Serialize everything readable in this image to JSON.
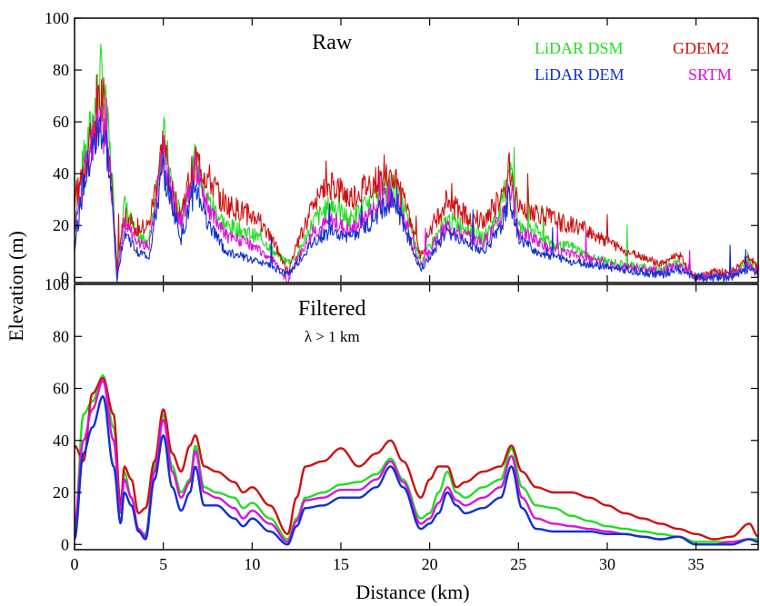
{
  "colors": {
    "lidar_dsm": "#22dd22",
    "gdem2": "#d01010",
    "lidar_dem": "#1030d0",
    "srtm": "#dd10dd"
  },
  "shared": {
    "ylabel": "Elevation (m)",
    "xlabel": "Distance (km)"
  },
  "chart_data": [
    {
      "type": "line",
      "title": "Raw",
      "subtitle": "",
      "xlim": [
        0,
        38.5
      ],
      "ylim": [
        -2,
        100
      ],
      "yticks": [
        0,
        20,
        40,
        60,
        80,
        100
      ],
      "xticks": [
        0,
        5,
        10,
        15,
        20,
        25,
        30,
        35
      ],
      "legend": "top-right",
      "series": [
        {
          "name": "LiDAR DSM",
          "key": "lidar_dsm",
          "x": [
            0,
            0.5,
            1,
            1.5,
            1.8,
            2.1,
            2.4,
            2.8,
            3.5,
            4.2,
            5,
            5.5,
            6,
            6.8,
            7.5,
            8.5,
            9.5,
            10.5,
            11.5,
            12,
            12.5,
            13.5,
            14.5,
            15.5,
            16.5,
            17.5,
            18,
            19,
            19.5,
            20,
            21,
            22,
            23,
            24,
            24.5,
            25,
            26,
            27,
            28,
            29,
            30,
            31,
            32,
            33,
            34,
            35,
            36,
            37,
            38,
            38.5
          ],
          "y": [
            22,
            45,
            60,
            78,
            62,
            40,
            5,
            28,
            16,
            14,
            55,
            35,
            22,
            45,
            30,
            20,
            18,
            15,
            8,
            6,
            8,
            22,
            28,
            22,
            28,
            34,
            35,
            18,
            6,
            12,
            22,
            20,
            15,
            25,
            45,
            20,
            18,
            12,
            12,
            8,
            6,
            5,
            4,
            3,
            6,
            0,
            1,
            1,
            6,
            2
          ]
        },
        {
          "name": "GDEM2",
          "key": "gdem2",
          "x": [
            0,
            0.5,
            1,
            1.5,
            1.8,
            2.1,
            2.4,
            2.8,
            3.5,
            4.2,
            5,
            5.5,
            6,
            6.8,
            7.5,
            8.5,
            9.5,
            10.5,
            11.5,
            12,
            12.5,
            13.5,
            14.5,
            15.5,
            16.5,
            17.5,
            18,
            19,
            19.5,
            20,
            21,
            22,
            23,
            24,
            24.5,
            25,
            26,
            27,
            28,
            29,
            30,
            31,
            32,
            33,
            34,
            35,
            36,
            37,
            38,
            38.5
          ],
          "y": [
            30,
            40,
            55,
            68,
            55,
            35,
            2,
            25,
            18,
            20,
            52,
            32,
            25,
            45,
            38,
            28,
            25,
            22,
            10,
            2,
            12,
            30,
            36,
            30,
            35,
            38,
            40,
            20,
            8,
            18,
            30,
            24,
            22,
            30,
            42,
            28,
            25,
            22,
            20,
            18,
            14,
            10,
            8,
            5,
            9,
            0,
            2,
            2,
            8,
            3
          ]
        },
        {
          "name": "LiDAR DEM",
          "key": "lidar_dem",
          "x": [
            0,
            0.5,
            1,
            1.5,
            1.8,
            2.1,
            2.4,
            2.8,
            3.5,
            4.2,
            5,
            5.5,
            6,
            6.8,
            7.5,
            8.5,
            9.5,
            10.5,
            11.5,
            12,
            12.5,
            13.5,
            14.5,
            15.5,
            16.5,
            17.5,
            18,
            19,
            19.5,
            20,
            21,
            22,
            23,
            24,
            24.5,
            25,
            26,
            27,
            28,
            29,
            30,
            31,
            32,
            33,
            34,
            35,
            36,
            37,
            38,
            38.5
          ],
          "y": [
            12,
            35,
            48,
            58,
            50,
            30,
            -1,
            18,
            10,
            8,
            42,
            28,
            15,
            35,
            22,
            10,
            8,
            6,
            3,
            1,
            5,
            14,
            18,
            15,
            20,
            28,
            30,
            12,
            3,
            8,
            18,
            14,
            10,
            18,
            32,
            15,
            10,
            8,
            6,
            5,
            4,
            3,
            2,
            1,
            3,
            0,
            0,
            0,
            3,
            1
          ]
        },
        {
          "name": "SRTM",
          "key": "srtm",
          "x": [
            0,
            0.5,
            1,
            1.5,
            1.8,
            2.1,
            2.4,
            2.8,
            3.5,
            4.2,
            5,
            5.5,
            6,
            6.8,
            7.5,
            8.5,
            9.5,
            10.5,
            11.5,
            12,
            12.5,
            13.5,
            14.5,
            15.5,
            16.5,
            17.5,
            18,
            19,
            19.5,
            20,
            21,
            22,
            23,
            24,
            24.5,
            25,
            26,
            27,
            28,
            29,
            30,
            31,
            32,
            33,
            34,
            35,
            36,
            37,
            38,
            38.5
          ],
          "y": [
            18,
            38,
            52,
            62,
            52,
            32,
            0,
            22,
            14,
            12,
            48,
            30,
            20,
            42,
            28,
            16,
            14,
            10,
            5,
            -2,
            7,
            18,
            22,
            18,
            24,
            30,
            33,
            14,
            4,
            10,
            20,
            16,
            13,
            22,
            36,
            18,
            14,
            10,
            9,
            7,
            5,
            4,
            3,
            2,
            5,
            0,
            1,
            1,
            5,
            2
          ]
        }
      ]
    },
    {
      "type": "line",
      "title": "Filtered",
      "subtitle": "λ > 1 km",
      "xlim": [
        0,
        38.5
      ],
      "ylim": [
        -2,
        100
      ],
      "yticks": [
        0,
        20,
        40,
        60,
        80,
        100
      ],
      "xticks": [
        0,
        5,
        10,
        15,
        20,
        25,
        30,
        35
      ],
      "xticklabels": [
        "0",
        "5",
        "10",
        "15",
        "20",
        "25",
        "30",
        "35"
      ],
      "series": [
        {
          "name": "LiDAR DSM",
          "key": "lidar_dsm",
          "x": [
            0,
            0.5,
            1,
            1.6,
            2.2,
            2.6,
            2.8,
            3.2,
            3.6,
            4,
            4.5,
            5,
            5.5,
            6,
            6.5,
            6.8,
            7.3,
            8,
            9,
            9.5,
            10,
            11,
            12,
            12.5,
            13,
            14,
            15,
            16,
            17,
            17.8,
            18.5,
            19.5,
            20,
            20.5,
            21,
            21.5,
            22,
            23,
            24,
            24.6,
            25.2,
            26,
            27,
            28,
            29,
            30,
            31,
            32,
            33,
            34,
            35,
            36,
            37,
            38,
            38.5
          ],
          "y": [
            5,
            50,
            55,
            65,
            45,
            15,
            28,
            18,
            5,
            4,
            30,
            50,
            30,
            20,
            25,
            38,
            22,
            20,
            18,
            14,
            16,
            10,
            2,
            10,
            18,
            20,
            23,
            24,
            27,
            33,
            25,
            10,
            12,
            20,
            28,
            20,
            18,
            22,
            25,
            37,
            22,
            15,
            14,
            11,
            9,
            7,
            6,
            5,
            4,
            3,
            1,
            1,
            1,
            2,
            2
          ]
        },
        {
          "name": "GDEM2",
          "key": "gdem2",
          "x": [
            0,
            0.5,
            1,
            1.6,
            2.2,
            2.6,
            2.8,
            3.2,
            3.6,
            4,
            4.5,
            5,
            5.5,
            6,
            6.5,
            6.8,
            7.3,
            8,
            9,
            9.5,
            10,
            11,
            12,
            12.5,
            13,
            14,
            15,
            16,
            17,
            17.8,
            18.5,
            19.5,
            20,
            20.5,
            21,
            21.5,
            22,
            23,
            24,
            24.6,
            25.2,
            26,
            27,
            28,
            29,
            30,
            31,
            32,
            33,
            34,
            35,
            36,
            37,
            38,
            38.5
          ],
          "y": [
            38,
            32,
            58,
            64,
            50,
            15,
            30,
            25,
            12,
            14,
            32,
            52,
            35,
            28,
            38,
            42,
            30,
            28,
            24,
            20,
            22,
            15,
            4,
            18,
            30,
            32,
            37,
            30,
            35,
            40,
            32,
            18,
            25,
            30,
            30,
            22,
            24,
            28,
            30,
            38,
            28,
            22,
            20,
            20,
            18,
            15,
            12,
            10,
            8,
            6,
            4,
            2,
            3,
            8,
            3
          ]
        },
        {
          "name": "LiDAR DEM",
          "key": "lidar_dem",
          "x": [
            0,
            0.5,
            1,
            1.6,
            2.2,
            2.6,
            2.8,
            3.2,
            3.6,
            4,
            4.5,
            5,
            5.5,
            6,
            6.5,
            6.8,
            7.3,
            8,
            9,
            9.5,
            10,
            11,
            12,
            12.5,
            13,
            14,
            15,
            16,
            17,
            17.8,
            18.5,
            19.5,
            20,
            20.5,
            21,
            21.5,
            22,
            23,
            24,
            24.6,
            25.2,
            26,
            27,
            28,
            29,
            30,
            31,
            32,
            33,
            34,
            35,
            36,
            37,
            38,
            38.5
          ],
          "y": [
            2,
            35,
            45,
            57,
            30,
            8,
            20,
            15,
            5,
            2,
            25,
            42,
            22,
            13,
            20,
            30,
            15,
            15,
            10,
            7,
            10,
            5,
            0,
            7,
            14,
            15,
            18,
            18,
            22,
            30,
            22,
            6,
            8,
            12,
            20,
            15,
            12,
            14,
            18,
            30,
            14,
            6,
            5,
            5,
            5,
            4,
            4,
            3,
            2,
            3,
            0,
            0,
            0,
            2,
            1
          ]
        },
        {
          "name": "SRTM",
          "key": "srtm",
          "x": [
            0,
            0.5,
            1,
            1.6,
            2.2,
            2.6,
            2.8,
            3.2,
            3.6,
            4,
            4.5,
            5,
            5.5,
            6,
            6.5,
            6.8,
            7.3,
            8,
            9,
            9.5,
            10,
            11,
            12,
            12.5,
            13,
            14,
            15,
            16,
            17,
            17.8,
            18.5,
            19.5,
            20,
            20.5,
            21,
            21.5,
            22,
            23,
            24,
            24.6,
            25.2,
            26,
            27,
            28,
            29,
            30,
            31,
            32,
            33,
            34,
            35,
            36,
            37,
            38,
            38.5
          ],
          "y": [
            8,
            40,
            52,
            63,
            40,
            12,
            25,
            18,
            6,
            3,
            28,
            48,
            28,
            18,
            24,
            36,
            20,
            18,
            14,
            10,
            13,
            8,
            1,
            9,
            17,
            18,
            21,
            21,
            25,
            32,
            24,
            8,
            10,
            16,
            22,
            17,
            15,
            18,
            22,
            34,
            18,
            10,
            8,
            7,
            6,
            5,
            4,
            3,
            2,
            3,
            0,
            0,
            1,
            2,
            1
          ]
        }
      ]
    }
  ]
}
